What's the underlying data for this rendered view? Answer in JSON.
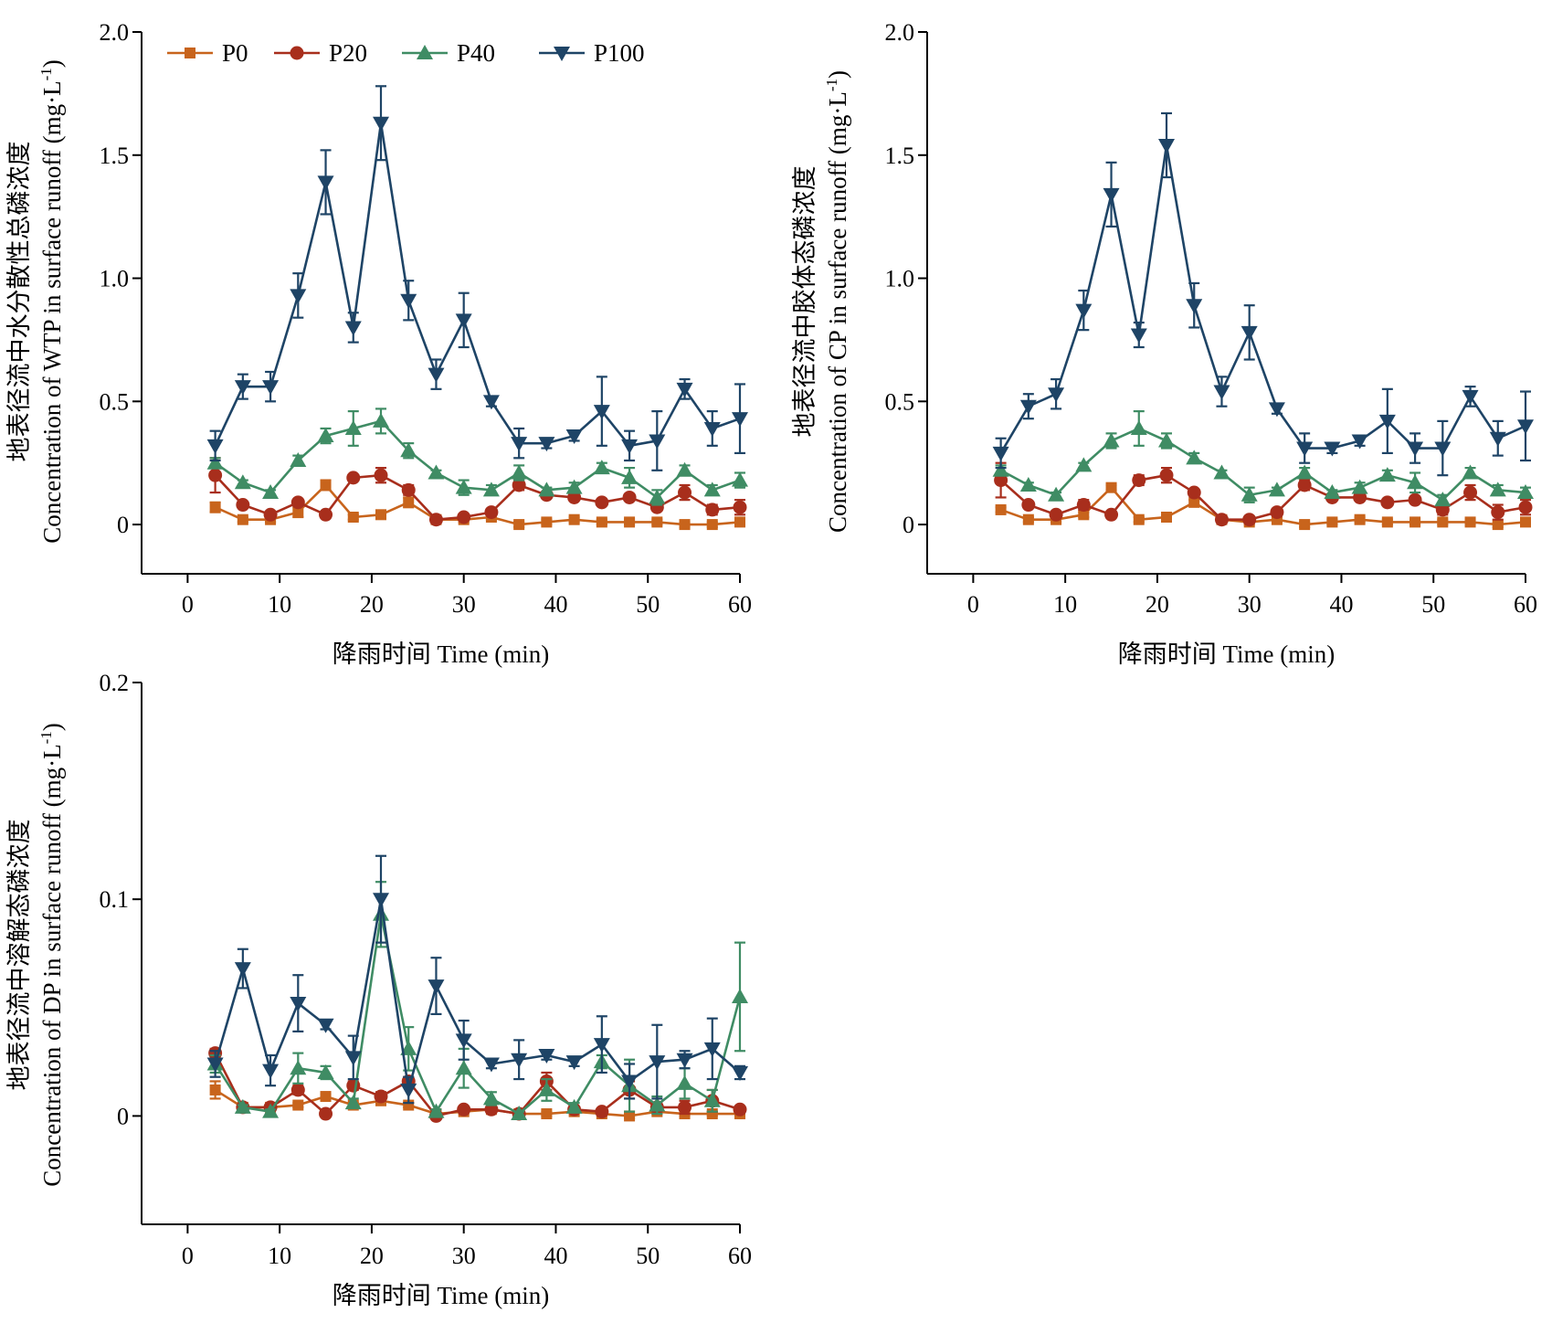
{
  "colors": {
    "P0": "#c8641c",
    "P20": "#a82e1c",
    "P40": "#3f8c64",
    "P100": "#1e4466",
    "axis": "#000000"
  },
  "legend": {
    "show_in_panel": 0,
    "placement": "top-left",
    "entries": [
      {
        "name": "P0",
        "marker": "square"
      },
      {
        "name": "P20",
        "marker": "circle"
      },
      {
        "name": "P40",
        "marker": "triangle-up"
      },
      {
        "name": "P100",
        "marker": "triangle-down"
      }
    ]
  },
  "chart_data": [
    {
      "type": "line",
      "ylabel_cn": "地表径流中水分散性总磷浓度",
      "ylabel_en": "Concentration of WTP  in surface runoff (mg·L",
      "ylabel_unit_sup": "-1",
      "ylabel_close": ")",
      "xlabel": "降雨时间 Time (min)",
      "xlim": [
        -5,
        60
      ],
      "ylim": [
        -0.2,
        2.0
      ],
      "xticks": [
        0,
        10,
        20,
        30,
        40,
        50,
        60
      ],
      "xtick_labels": [
        "0",
        "10",
        "20",
        "30",
        "40",
        "50",
        "60"
      ],
      "yticks": [
        0,
        0.5,
        1.0,
        1.5,
        2.0
      ],
      "ytick_labels": [
        "0",
        "0.5",
        "1.0",
        "1.5",
        "2.0"
      ],
      "x": [
        3,
        6,
        9,
        12,
        15,
        18,
        21,
        24,
        27,
        30,
        33,
        36,
        39,
        42,
        45,
        48,
        51,
        54,
        57,
        60
      ],
      "series": [
        {
          "name": "P0",
          "values": [
            0.07,
            0.02,
            0.02,
            0.05,
            0.16,
            0.03,
            0.04,
            0.09,
            0.02,
            0.02,
            0.03,
            0.0,
            0.01,
            0.02,
            0.01,
            0.01,
            0.01,
            0.0,
            0.0,
            0.01
          ],
          "errors": [
            0.02,
            0.01,
            0.01,
            0.02,
            0.02,
            0.01,
            0.01,
            0.02,
            0.01,
            0.01,
            0.01,
            0.01,
            0.01,
            0.01,
            0.01,
            0.01,
            0.01,
            0.01,
            0.01,
            0.01
          ]
        },
        {
          "name": "P20",
          "values": [
            0.2,
            0.08,
            0.04,
            0.09,
            0.04,
            0.19,
            0.2,
            0.14,
            0.02,
            0.03,
            0.05,
            0.16,
            0.12,
            0.11,
            0.09,
            0.11,
            0.07,
            0.13,
            0.06,
            0.07
          ],
          "errors": [
            0.07,
            0.01,
            0.01,
            0.01,
            0.01,
            0.01,
            0.03,
            0.02,
            0.01,
            0.01,
            0.01,
            0.02,
            0.01,
            0.01,
            0.01,
            0.01,
            0.01,
            0.03,
            0.02,
            0.03
          ]
        },
        {
          "name": "P40",
          "values": [
            0.25,
            0.17,
            0.13,
            0.26,
            0.36,
            0.39,
            0.42,
            0.3,
            0.21,
            0.15,
            0.14,
            0.21,
            0.14,
            0.15,
            0.23,
            0.19,
            0.11,
            0.22,
            0.14,
            0.18
          ],
          "errors": [
            0.02,
            0.01,
            0.01,
            0.02,
            0.03,
            0.07,
            0.05,
            0.03,
            0.01,
            0.03,
            0.02,
            0.03,
            0.01,
            0.02,
            0.02,
            0.04,
            0.03,
            0.02,
            0.02,
            0.03
          ]
        },
        {
          "name": "P100",
          "values": [
            0.32,
            0.56,
            0.56,
            0.93,
            1.39,
            0.8,
            1.63,
            0.91,
            0.61,
            0.83,
            0.5,
            0.33,
            0.33,
            0.36,
            0.46,
            0.32,
            0.34,
            0.55,
            0.39,
            0.43
          ],
          "errors": [
            0.06,
            0.05,
            0.06,
            0.09,
            0.13,
            0.06,
            0.15,
            0.08,
            0.06,
            0.11,
            0.02,
            0.06,
            0.02,
            0.02,
            0.14,
            0.06,
            0.12,
            0.04,
            0.07,
            0.14
          ]
        }
      ]
    },
    {
      "type": "line",
      "ylabel_cn": "地表径流中胶体态磷浓度",
      "ylabel_en": "Concentration of CP  in surface runoff (mg·L",
      "ylabel_unit_sup": "-1",
      "ylabel_close": ")",
      "xlabel": "降雨时间 Time (min)",
      "xlim": [
        -5,
        60
      ],
      "ylim": [
        -0.2,
        2.0
      ],
      "xticks": [
        0,
        10,
        20,
        30,
        40,
        50,
        60
      ],
      "xtick_labels": [
        "0",
        "10",
        "20",
        "30",
        "40",
        "50",
        "60"
      ],
      "yticks": [
        0,
        0.5,
        1.0,
        1.5,
        2.0
      ],
      "ytick_labels": [
        "0",
        "0.5",
        "1.0",
        "1.5",
        "2.0"
      ],
      "x": [
        3,
        6,
        9,
        12,
        15,
        18,
        21,
        24,
        27,
        30,
        33,
        36,
        39,
        42,
        45,
        48,
        51,
        54,
        57,
        60
      ],
      "series": [
        {
          "name": "P0",
          "values": [
            0.06,
            0.02,
            0.02,
            0.04,
            0.15,
            0.02,
            0.03,
            0.09,
            0.02,
            0.01,
            0.02,
            0.0,
            0.01,
            0.02,
            0.01,
            0.01,
            0.01,
            0.01,
            0.0,
            0.01
          ],
          "errors": [
            0.01,
            0.01,
            0.01,
            0.01,
            0.01,
            0.01,
            0.01,
            0.01,
            0.01,
            0.01,
            0.01,
            0.01,
            0.01,
            0.01,
            0.01,
            0.01,
            0.01,
            0.01,
            0.01,
            0.01
          ]
        },
        {
          "name": "P20",
          "values": [
            0.18,
            0.08,
            0.04,
            0.08,
            0.04,
            0.18,
            0.2,
            0.13,
            0.02,
            0.02,
            0.05,
            0.16,
            0.11,
            0.11,
            0.09,
            0.1,
            0.06,
            0.13,
            0.05,
            0.07
          ],
          "errors": [
            0.07,
            0.01,
            0.01,
            0.02,
            0.01,
            0.02,
            0.03,
            0.01,
            0.01,
            0.01,
            0.01,
            0.02,
            0.01,
            0.01,
            0.01,
            0.01,
            0.02,
            0.03,
            0.03,
            0.03
          ]
        },
        {
          "name": "P40",
          "values": [
            0.22,
            0.16,
            0.12,
            0.24,
            0.34,
            0.39,
            0.34,
            0.27,
            0.21,
            0.12,
            0.14,
            0.21,
            0.13,
            0.15,
            0.2,
            0.17,
            0.1,
            0.21,
            0.14,
            0.13
          ],
          "errors": [
            0.02,
            0.01,
            0.01,
            0.01,
            0.03,
            0.07,
            0.03,
            0.02,
            0.01,
            0.03,
            0.01,
            0.02,
            0.01,
            0.02,
            0.02,
            0.04,
            0.02,
            0.02,
            0.02,
            0.02
          ]
        },
        {
          "name": "P100",
          "values": [
            0.29,
            0.48,
            0.53,
            0.87,
            1.34,
            0.77,
            1.54,
            0.89,
            0.54,
            0.78,
            0.47,
            0.31,
            0.31,
            0.34,
            0.42,
            0.31,
            0.31,
            0.52,
            0.35,
            0.4
          ],
          "errors": [
            0.06,
            0.05,
            0.06,
            0.08,
            0.13,
            0.05,
            0.13,
            0.09,
            0.06,
            0.11,
            0.02,
            0.06,
            0.02,
            0.02,
            0.13,
            0.06,
            0.11,
            0.04,
            0.07,
            0.14
          ]
        }
      ]
    },
    {
      "type": "line",
      "ylabel_cn": "地表径流中溶解态磷浓度",
      "ylabel_en": "Concentration of DP in surface runoff (mg·L",
      "ylabel_unit_sup": "-1",
      "ylabel_close": ")",
      "xlabel": "降雨时间 Time (min)",
      "xlim": [
        -5,
        60
      ],
      "ylim": [
        -0.05,
        0.2
      ],
      "xticks": [
        0,
        10,
        20,
        30,
        40,
        50,
        60
      ],
      "xtick_labels": [
        "0",
        "10",
        "20",
        "30",
        "40",
        "50",
        "60"
      ],
      "yticks": [
        0,
        0.1,
        0.2
      ],
      "ytick_labels": [
        "0",
        "0.1",
        "0.2"
      ],
      "x": [
        3,
        6,
        9,
        12,
        15,
        18,
        21,
        24,
        27,
        30,
        33,
        36,
        39,
        42,
        45,
        48,
        51,
        54,
        57,
        60
      ],
      "series": [
        {
          "name": "P0",
          "values": [
            0.012,
            0.004,
            0.004,
            0.005,
            0.009,
            0.005,
            0.007,
            0.005,
            0.001,
            0.002,
            0.003,
            0.001,
            0.001,
            0.002,
            0.001,
            0.0,
            0.002,
            0.001,
            0.001,
            0.001
          ],
          "errors": [
            0.004,
            0.001,
            0.001,
            0.001,
            0.001,
            0.001,
            0.001,
            0.001,
            0.001,
            0.001,
            0.001,
            0.001,
            0.001,
            0.001,
            0.001,
            0.001,
            0.001,
            0.001,
            0.001,
            0.001
          ]
        },
        {
          "name": "P20",
          "values": [
            0.029,
            0.004,
            0.004,
            0.012,
            0.001,
            0.014,
            0.009,
            0.016,
            0.0,
            0.003,
            0.003,
            0.001,
            0.016,
            0.003,
            0.002,
            0.012,
            0.004,
            0.004,
            0.007,
            0.003
          ],
          "errors": [
            0.002,
            0.001,
            0.001,
            0.002,
            0.001,
            0.002,
            0.002,
            0.002,
            0.001,
            0.001,
            0.001,
            0.001,
            0.004,
            0.001,
            0.001,
            0.004,
            0.002,
            0.003,
            0.005,
            0.001
          ]
        },
        {
          "name": "P40",
          "values": [
            0.024,
            0.004,
            0.002,
            0.022,
            0.02,
            0.006,
            0.093,
            0.031,
            0.002,
            0.022,
            0.008,
            0.001,
            0.012,
            0.004,
            0.025,
            0.014,
            0.005,
            0.015,
            0.007,
            0.055
          ],
          "errors": [
            0.004,
            0.001,
            0.001,
            0.007,
            0.003,
            0.002,
            0.015,
            0.01,
            0.001,
            0.009,
            0.003,
            0.001,
            0.005,
            0.002,
            0.003,
            0.012,
            0.004,
            0.007,
            0.005,
            0.025
          ]
        },
        {
          "name": "P100",
          "values": [
            0.024,
            0.068,
            0.021,
            0.052,
            0.042,
            0.027,
            0.1,
            0.012,
            0.06,
            0.035,
            0.024,
            0.026,
            0.028,
            0.025,
            0.033,
            0.016,
            0.025,
            0.026,
            0.031,
            0.02
          ],
          "errors": [
            0.006,
            0.009,
            0.007,
            0.013,
            0.002,
            0.01,
            0.02,
            0.006,
            0.013,
            0.009,
            0.002,
            0.009,
            0.002,
            0.002,
            0.013,
            0.008,
            0.017,
            0.004,
            0.014,
            0.003
          ]
        }
      ]
    }
  ]
}
